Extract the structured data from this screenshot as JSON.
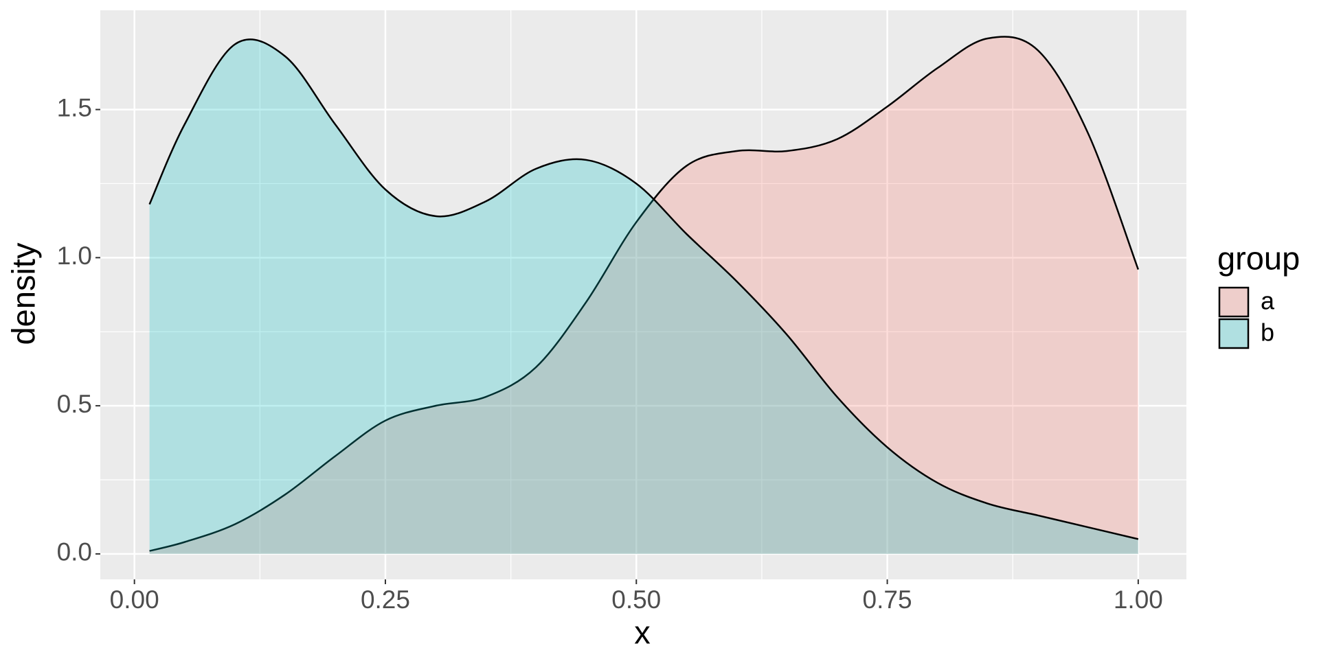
{
  "chart_data": {
    "type": "density",
    "x_label": "x",
    "y_label": "density",
    "legend_title": "group",
    "legend_position": "right",
    "x": [
      0.015,
      0.05,
      0.1,
      0.15,
      0.2,
      0.25,
      0.3,
      0.35,
      0.4,
      0.45,
      0.5,
      0.55,
      0.6,
      0.65,
      0.7,
      0.75,
      0.8,
      0.85,
      0.9,
      0.95,
      1.0
    ],
    "series": [
      {
        "name": "a",
        "color": "#F8766D",
        "values": [
          0.01,
          0.04,
          0.1,
          0.2,
          0.33,
          0.45,
          0.5,
          0.53,
          0.63,
          0.85,
          1.12,
          1.31,
          1.36,
          1.36,
          1.4,
          1.51,
          1.64,
          1.74,
          1.7,
          1.42,
          0.96
        ]
      },
      {
        "name": "b",
        "color": "#00BFC4",
        "values": [
          1.18,
          1.45,
          1.72,
          1.68,
          1.45,
          1.23,
          1.14,
          1.19,
          1.3,
          1.33,
          1.25,
          1.08,
          0.92,
          0.74,
          0.53,
          0.36,
          0.24,
          0.17,
          0.13,
          0.09,
          0.05
        ]
      }
    ],
    "xlim": [
      -0.034,
      1.048
    ],
    "ylim": [
      -0.086,
      1.835
    ],
    "xticks": [
      {
        "value": 0,
        "label": "0.00"
      },
      {
        "value": 0.25,
        "label": "0.25"
      },
      {
        "value": 0.5,
        "label": "0.50"
      },
      {
        "value": 0.75,
        "label": "0.75"
      },
      {
        "value": 1,
        "label": "1.00"
      }
    ],
    "yticks": [
      {
        "value": 0,
        "label": "0.0"
      },
      0.5,
      {
        "value": 1,
        "label": "1.0"
      },
      1.5
    ],
    "grid": true
  }
}
